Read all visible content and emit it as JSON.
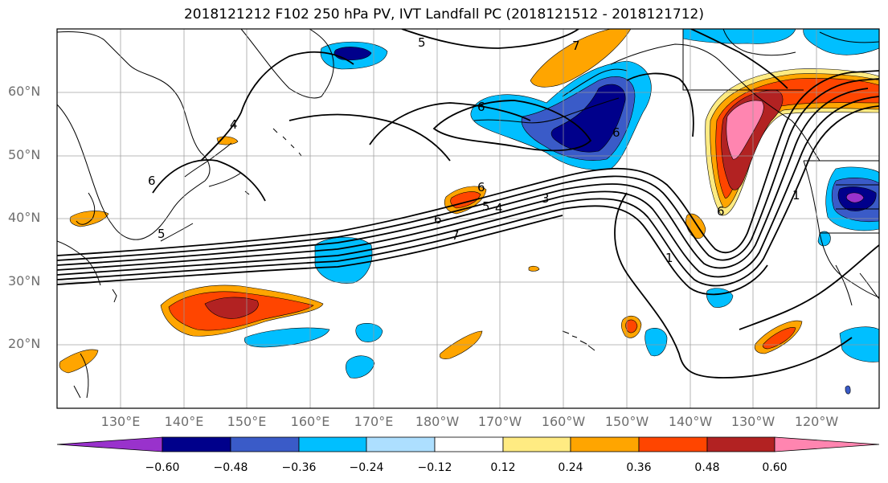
{
  "title": "2018121212 F102 250 hPa PV, IVT Landfall PC (2018121512 - 2018121712)",
  "lat_labels": [
    "60°N",
    "50°N",
    "40°N",
    "30°N",
    "20°N"
  ],
  "lon_labels": [
    "130°E",
    "140°E",
    "150°E",
    "160°E",
    "170°E",
    "180°W",
    "170°W",
    "160°W",
    "150°W",
    "140°W",
    "130°W",
    "120°W"
  ],
  "contour_labels": [
    "5",
    "7",
    "6",
    "4",
    "6",
    "6",
    "3",
    "5",
    "4",
    "6",
    "5",
    "7",
    "1",
    "6",
    "1",
    "6"
  ],
  "colorbar": {
    "colors": [
      "#9932CC",
      "#00008B",
      "#3A5BC8",
      "#00BFFF",
      "#ADDFFF",
      "#FFFFFF",
      "#FFEB82",
      "#FFA500",
      "#FF4500",
      "#B22222",
      "#FF85B0"
    ],
    "tick_labels": [
      "−0.60",
      "−0.48",
      "−0.36",
      "−0.24",
      "−0.12",
      "0.12",
      "0.24",
      "0.36",
      "0.48",
      "0.60"
    ]
  }
}
